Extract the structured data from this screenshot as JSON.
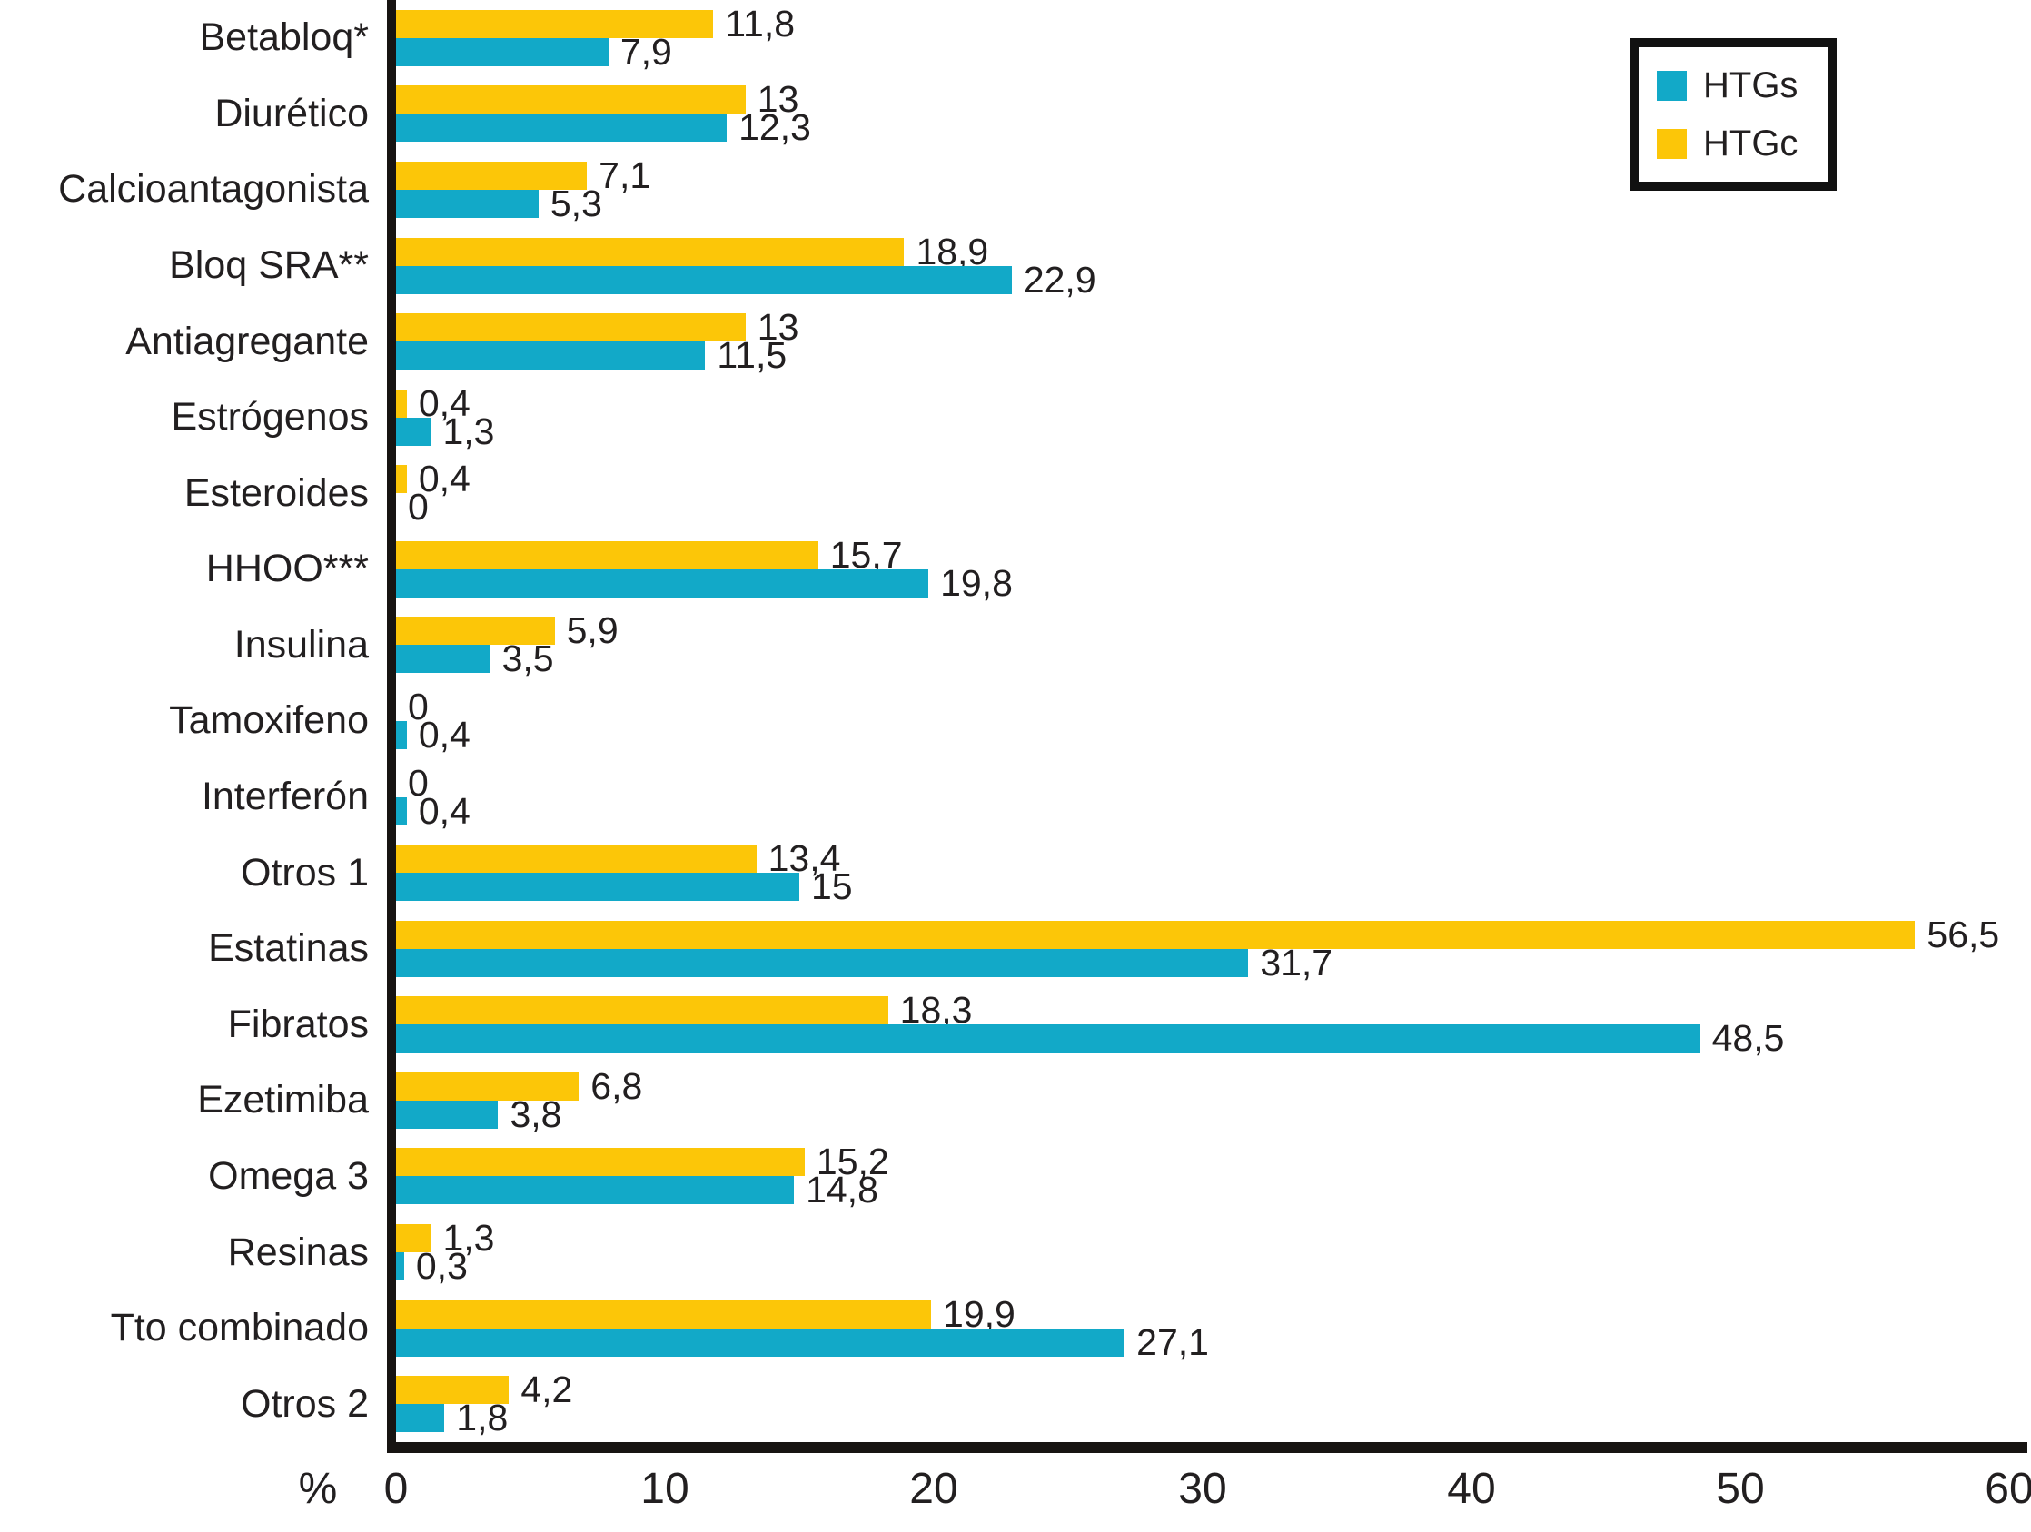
{
  "chart_data": {
    "type": "bar",
    "orientation": "horizontal",
    "xlabel": "%",
    "xlim": [
      0,
      60
    ],
    "xticks": [
      "0",
      "10",
      "20",
      "30",
      "40",
      "50",
      "60"
    ],
    "grid": false,
    "legend_position": "top-right",
    "bar_order_per_category": [
      "HTGc",
      "HTGs"
    ],
    "categories": [
      "Betabloq*",
      "Diurético",
      "Calcioantagonista",
      "Bloq SRA**",
      "Antiagregante",
      "Estrógenos",
      "Esteroides",
      "HHOO***",
      "Insulina",
      "Tamoxifeno",
      "Interferón",
      "Otros 1",
      "Estatinas",
      "Fibratos",
      "Ezetimiba",
      "Omega 3",
      "Resinas",
      "Tto combinado",
      "Otros 2"
    ],
    "series": [
      {
        "name": "HTGs",
        "color": "#12A9C8",
        "values": [
          7.9,
          12.3,
          5.3,
          22.9,
          11.5,
          1.3,
          0,
          19.8,
          3.5,
          0.4,
          0.4,
          15,
          31.7,
          48.5,
          3.8,
          14.8,
          0.3,
          27.1,
          1.8
        ],
        "labels": [
          "7,9",
          "12,3",
          "5,3",
          "22,9",
          "11,5",
          "1,3",
          "0",
          "19,8",
          "3,5",
          "0,4",
          "0,4",
          "15",
          "31,7",
          "48,5",
          "3,8",
          "14,8",
          "0,3",
          "27,1",
          "1,8"
        ]
      },
      {
        "name": "HTGc",
        "color": "#FCC608",
        "values": [
          11.8,
          13,
          7.1,
          18.9,
          13,
          0.4,
          0.4,
          15.7,
          5.9,
          0,
          0,
          13.4,
          56.5,
          18.3,
          6.8,
          15.2,
          1.3,
          19.9,
          4.2
        ],
        "labels": [
          "11,8",
          "13",
          "7,1",
          "18,9",
          "13",
          "0,4",
          "0,4",
          "15,7",
          "5,9",
          "0",
          "0",
          "13,4",
          "56,5",
          "18,3",
          "6,8",
          "15,2",
          "1,3",
          "19,9",
          "4,2"
        ]
      }
    ]
  }
}
